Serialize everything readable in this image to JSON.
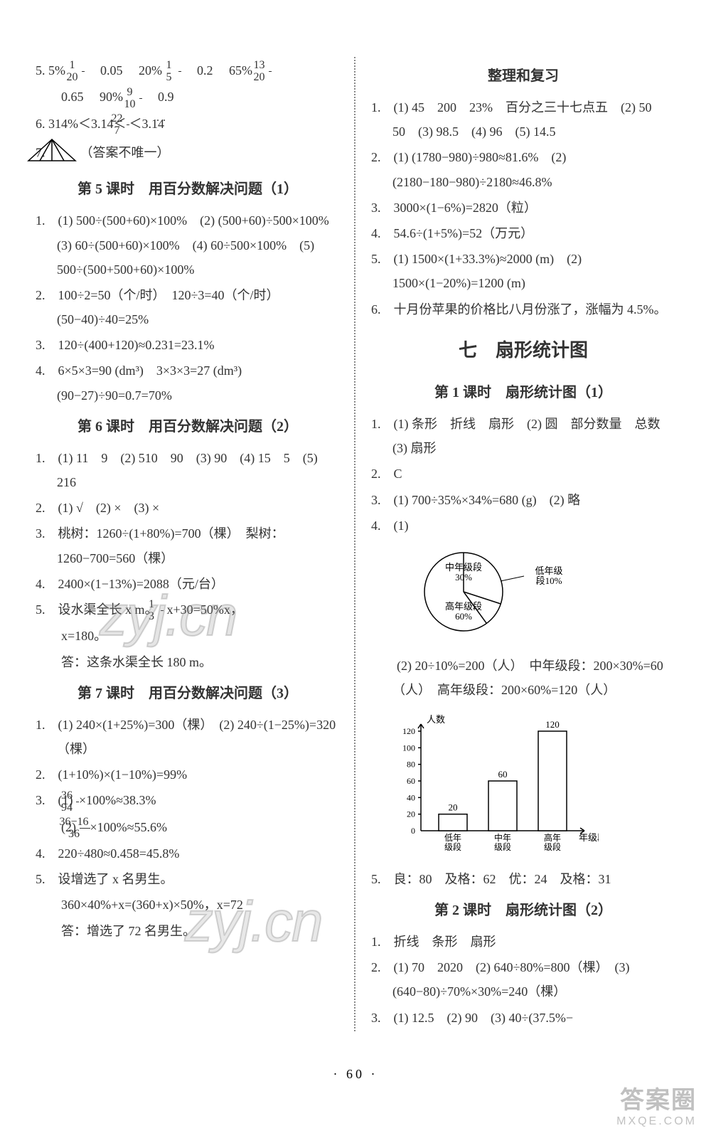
{
  "left": {
    "q5_line1_prefix": "5.",
    "q5_v1": "5%",
    "q5_f1_n": "1",
    "q5_f1_d": "20",
    "q5_v2": "0.05",
    "q5_v3": "20%",
    "q5_f2_n": "1",
    "q5_f2_d": "5",
    "q5_v4": "0.2",
    "q5_v5": "65%",
    "q5_f3_n": "13",
    "q5_f3_d": "20",
    "q5_line2_v1": "0.65",
    "q5_v6": "90%",
    "q5_f4_n": "9",
    "q5_f4_d": "10",
    "q5_v7": "0.9",
    "q6_prefix": "6.",
    "q6a": "314%＜3.14＜",
    "q6_fn": "22",
    "q6_fd": "7",
    "q6b": "＜3.1̇4̇",
    "q7_prefix": "7.",
    "q7_note": "（答案不唯一）",
    "sec5_title": "第 5 课时　用百分数解决问题（1）",
    "s5_1": "1.　(1) 500÷(500+60)×100%　(2) (500+60)÷500×100%　(3) 60÷(500+60)×100%　(4) 60÷500×100%　(5) 500÷(500+500+60)×100%",
    "s5_2": "2.　100÷2=50（个/时）　120÷3=40（个/时）　(50−40)÷40=25%",
    "s5_3": "3.　120÷(400+120)≈0.231=23.1%",
    "s5_4": "4.　6×5×3=90 (dm³)　3×3×3=27 (dm³)　(90−27)÷90=0.7=70%",
    "sec6_title": "第 6 课时　用百分数解决问题（2）",
    "s6_1": "1.　(1) 11　9　(2) 510　90　(3) 90　(4) 15　5　(5) 216",
    "s6_2": "2.　(1) √　(2) ×　(3) ×",
    "s6_3": "3.　桃树：1260÷(1+80%)=700（棵）　梨树：1260−700=560（棵）",
    "s6_4": "4.　2400×(1−13%)=2088（元/台）",
    "s6_5a": "5.　设水渠全长 x m。",
    "s6_5fn": "1",
    "s6_5fd": "3",
    "s6_5b": "x+30=50%x，",
    "s6_5c": "　　x=180。",
    "s6_5d": "　　答：这条水渠全长 180 m。",
    "sec7_title": "第 7 课时　用百分数解决问题（3）",
    "s7_1": "1.　(1) 240×(1+25%)=300（棵）　(2) 240÷(1−25%)=320（棵）",
    "s7_2": "2.　(1+10%)×(1−10%)=99%",
    "s7_3a": "3.　(1) ",
    "s7_3f1n": "36",
    "s7_3f1d": "94",
    "s7_3a2": "×100%≈38.3%",
    "s7_3b": "　　(2) ",
    "s7_3f2n": "36−16",
    "s7_3f2d": "36",
    "s7_3b2": "×100%≈55.6%",
    "s7_4": "4.　220÷480≈0.458=45.8%",
    "s7_5a": "5.　设增选了 x 名男生。",
    "s7_5b": "　　360×40%+x=(360+x)×50%，x=72",
    "s7_5c": "　　答：增选了 72 名男生。"
  },
  "right": {
    "review_title": "整理和复习",
    "r1": "1.　(1) 45　200　23%　百分之三十七点五　(2) 50　50　(3) 98.5　(4) 96　(5) 14.5",
    "r2": "2.　(1) (1780−980)÷980≈81.6%　(2) (2180−180−980)÷2180≈46.8%",
    "r3": "3.　3000×(1−6%)=2820（粒）",
    "r4": "4.　54.6÷(1+5%)=52（万元）",
    "r5": "5.　(1) 1500×(1+33.3%)≈2000 (m)　(2) 1500×(1−20%)=1200 (m)",
    "r6": "6.　十月份苹果的价格比八月份涨了，涨幅为 4.5%。",
    "ch7_title": "七　扇形统计图",
    "l1_title": "第 1 课时　扇形统计图（1）",
    "c1_1": "1.　(1) 条形　折线　扇形　(2) 圆　部分数量　总数　(3) 扇形",
    "c1_2": "2.　C",
    "c1_3": "3.　(1) 700÷35%×34%=680 (g)　(2) 略",
    "c1_4a": "4.　(1)",
    "pie": {
      "slices": [
        {
          "label": "中年级段\n30%",
          "start": -90,
          "end": 18,
          "fill": "#ffffff"
        },
        {
          "label": "低年级\n段10%",
          "start": 18,
          "end": 54,
          "fill": "#ffffff"
        },
        {
          "label": "高年级段\n60%",
          "start": 54,
          "end": 270,
          "fill": "#ffffff"
        }
      ],
      "stroke": "#000"
    },
    "c1_4b": "　　(2) 20÷10%=200（人）　中年级段：200×30%=60（人）　高年级段：200×60%=120（人）",
    "bar": {
      "ylabel": "人数",
      "xlabel": "年级段",
      "yticks": [
        20,
        40,
        60,
        80,
        100,
        120
      ],
      "cats": [
        "低年\n级段",
        "中年\n级段",
        "高年\n级段"
      ],
      "values": [
        20,
        60,
        120
      ],
      "value_labels": [
        "20",
        "60",
        "120"
      ],
      "bar_color": "#ffffff",
      "stroke": "#000"
    },
    "c1_5": "5.　良：80　及格：62　优：24　及格：31",
    "l2_title": "第 2 课时　扇形统计图（2）",
    "c2_1": "1.　折线　条形　扇形",
    "c2_2": "2.　(1) 70　2020　(2) 640÷80%=800（棵）　(3) (640−80)÷70%×30%=240（棵）",
    "c2_3": "3.　(1) 12.5　(2) 90　(3) 40÷(37.5%−"
  },
  "pagenum": "· 60 ·",
  "wm": "zyj.cn",
  "corner1": "答案圈",
  "corner2": "MXQE.COM"
}
